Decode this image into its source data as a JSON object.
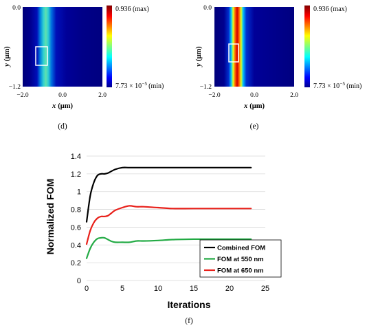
{
  "panels": [
    {
      "id": "d",
      "caption": "(d)",
      "y_label_sym": "y",
      "y_label_unit": "(μm)",
      "x_label_sym": "x",
      "x_label_unit": "(μm)",
      "y_ticks": [
        "0.0",
        "−1.2"
      ],
      "x_ticks": [
        "−2.0",
        "0.0",
        "2.0"
      ],
      "colorbar_max": "0.936 (max)",
      "colorbar_min_mantissa": "7.73 × 10",
      "colorbar_min_exp": "−5",
      "colorbar_min_suffix": "(min)",
      "intensity": "low"
    },
    {
      "id": "e",
      "caption": "(e)",
      "y_label_sym": "y",
      "y_label_unit": "(μm)",
      "x_label_sym": "x",
      "x_label_unit": "(μm)",
      "y_ticks": [
        "0.0",
        "−1.2"
      ],
      "x_ticks": [
        "−2.0",
        "0.0",
        "2.0"
      ],
      "colorbar_max": "0.936 (max)",
      "colorbar_min_mantissa": "7.73 × 10",
      "colorbar_min_exp": "−5",
      "colorbar_min_suffix": "(min)",
      "intensity": "high"
    }
  ],
  "chart_data": {
    "type": "line",
    "caption": "(f)",
    "xlabel": "Iterations",
    "ylabel": "Normalized FOM",
    "xlim": [
      0,
      25
    ],
    "ylim": [
      0,
      1.4
    ],
    "x_ticks": [
      "0",
      "5",
      "10",
      "15",
      "20",
      "25"
    ],
    "y_ticks": [
      "0",
      "0.2",
      "0.4",
      "0.6",
      "0.8",
      "1",
      "1.2",
      "1.4"
    ],
    "grid": "horizontal",
    "legend_position": "bottom-right",
    "series": [
      {
        "name": "Combined FOM",
        "color": "#000000",
        "x": [
          0,
          0.5,
          1,
          1.5,
          2,
          2.5,
          3,
          4,
          5,
          6,
          8,
          10,
          15,
          20,
          23
        ],
        "y": [
          0.66,
          0.95,
          1.1,
          1.18,
          1.2,
          1.2,
          1.21,
          1.25,
          1.27,
          1.27,
          1.27,
          1.27,
          1.27,
          1.27,
          1.27
        ]
      },
      {
        "name": "FOM at 550 nm",
        "color": "#22aa44",
        "x": [
          0,
          0.5,
          1,
          1.5,
          2,
          2.5,
          3,
          3.5,
          4,
          5,
          6,
          7,
          8,
          10,
          12,
          15,
          20,
          23
        ],
        "y": [
          0.25,
          0.36,
          0.43,
          0.47,
          0.48,
          0.48,
          0.46,
          0.44,
          0.43,
          0.43,
          0.43,
          0.445,
          0.445,
          0.45,
          0.46,
          0.465,
          0.465,
          0.465
        ]
      },
      {
        "name": "FOM at 650 nm",
        "color": "#e8201a",
        "x": [
          0,
          0.5,
          1,
          1.5,
          2,
          2.5,
          3,
          3.5,
          4,
          5,
          6,
          7,
          8,
          10,
          12,
          15,
          20,
          23
        ],
        "y": [
          0.41,
          0.56,
          0.65,
          0.7,
          0.72,
          0.72,
          0.73,
          0.76,
          0.79,
          0.82,
          0.84,
          0.83,
          0.83,
          0.82,
          0.81,
          0.81,
          0.81,
          0.81
        ]
      }
    ]
  }
}
